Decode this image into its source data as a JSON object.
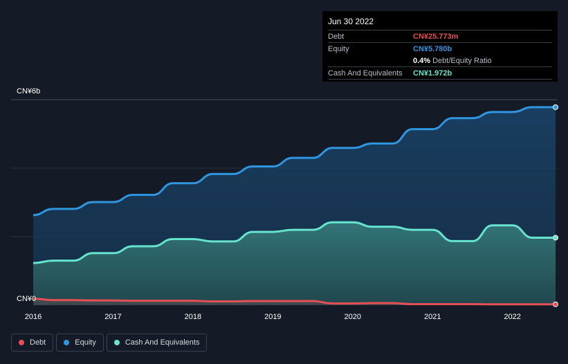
{
  "tooltip": {
    "date": "Jun 30 2022",
    "rows": [
      {
        "label": "Debt",
        "value": "CN¥25.773m",
        "color": "#e64f54"
      },
      {
        "label": "Equity",
        "value": "CN¥5.780b",
        "color": "#2f96e0"
      },
      {
        "label": "Cash And Equivalents",
        "value": "CN¥1.972b",
        "color": "#66e4cf"
      }
    ],
    "ratio_pct": "0.4%",
    "ratio_label": "Debt/Equity Ratio"
  },
  "legend": [
    {
      "label": "Debt",
      "color": "#e64f54"
    },
    {
      "label": "Equity",
      "color": "#2f96e0"
    },
    {
      "label": "Cash And Equivalents",
      "color": "#66e4cf"
    }
  ],
  "chart_data": {
    "type": "area",
    "y_top_label": "CN¥6b",
    "y_bottom_label": "CN¥0",
    "ylim": [
      0,
      6
    ],
    "y_unit": "CN¥ billions",
    "xlim": [
      2016,
      2022.54
    ],
    "x_ticks": [
      "2016",
      "2017",
      "2018",
      "2019",
      "2020",
      "2021",
      "2022"
    ],
    "grid": true,
    "series": [
      {
        "name": "Equity",
        "color": "#2f96e0",
        "x": [
          2016.0,
          2016.25,
          2016.5,
          2016.75,
          2017.0,
          2017.25,
          2017.5,
          2017.75,
          2018.0,
          2018.25,
          2018.5,
          2018.75,
          2019.0,
          2019.25,
          2019.5,
          2019.75,
          2020.0,
          2020.25,
          2020.5,
          2020.75,
          2021.0,
          2021.25,
          2021.5,
          2021.75,
          2022.0,
          2022.25,
          2022.5
        ],
        "y": [
          2.63,
          2.81,
          2.81,
          3.01,
          3.01,
          3.22,
          3.22,
          3.56,
          3.56,
          3.83,
          3.83,
          4.05,
          4.05,
          4.3,
          4.3,
          4.59,
          4.59,
          4.72,
          4.72,
          5.14,
          5.14,
          5.46,
          5.46,
          5.64,
          5.64,
          5.78,
          5.78
        ]
      },
      {
        "name": "Cash And Equivalents",
        "color": "#66e4cf",
        "x": [
          2016.0,
          2016.25,
          2016.5,
          2016.75,
          2017.0,
          2017.25,
          2017.5,
          2017.75,
          2018.0,
          2018.25,
          2018.5,
          2018.75,
          2019.0,
          2019.25,
          2019.5,
          2019.75,
          2020.0,
          2020.25,
          2020.5,
          2020.75,
          2021.0,
          2021.25,
          2021.5,
          2021.75,
          2022.0,
          2022.25,
          2022.5
        ],
        "y": [
          1.23,
          1.3,
          1.3,
          1.52,
          1.52,
          1.72,
          1.72,
          1.93,
          1.93,
          1.86,
          1.86,
          2.14,
          2.14,
          2.2,
          2.2,
          2.42,
          2.42,
          2.29,
          2.29,
          2.2,
          2.2,
          1.87,
          1.87,
          2.33,
          2.33,
          1.97,
          1.97
        ]
      },
      {
        "name": "Debt",
        "color": "#e64f54",
        "x": [
          2016.0,
          2016.25,
          2016.5,
          2016.75,
          2017.0,
          2017.25,
          2017.5,
          2017.75,
          2018.0,
          2018.25,
          2018.5,
          2018.75,
          2019.0,
          2019.25,
          2019.5,
          2019.75,
          2020.0,
          2020.25,
          2020.5,
          2020.75,
          2021.0,
          2021.25,
          2021.5,
          2021.75,
          2022.0,
          2022.25,
          2022.5
        ],
        "y": [
          0.19,
          0.15,
          0.15,
          0.14,
          0.14,
          0.13,
          0.13,
          0.13,
          0.13,
          0.11,
          0.11,
          0.12,
          0.12,
          0.12,
          0.12,
          0.05,
          0.05,
          0.06,
          0.06,
          0.03,
          0.03,
          0.03,
          0.03,
          0.026,
          0.026,
          0.026,
          0.026
        ]
      }
    ]
  }
}
